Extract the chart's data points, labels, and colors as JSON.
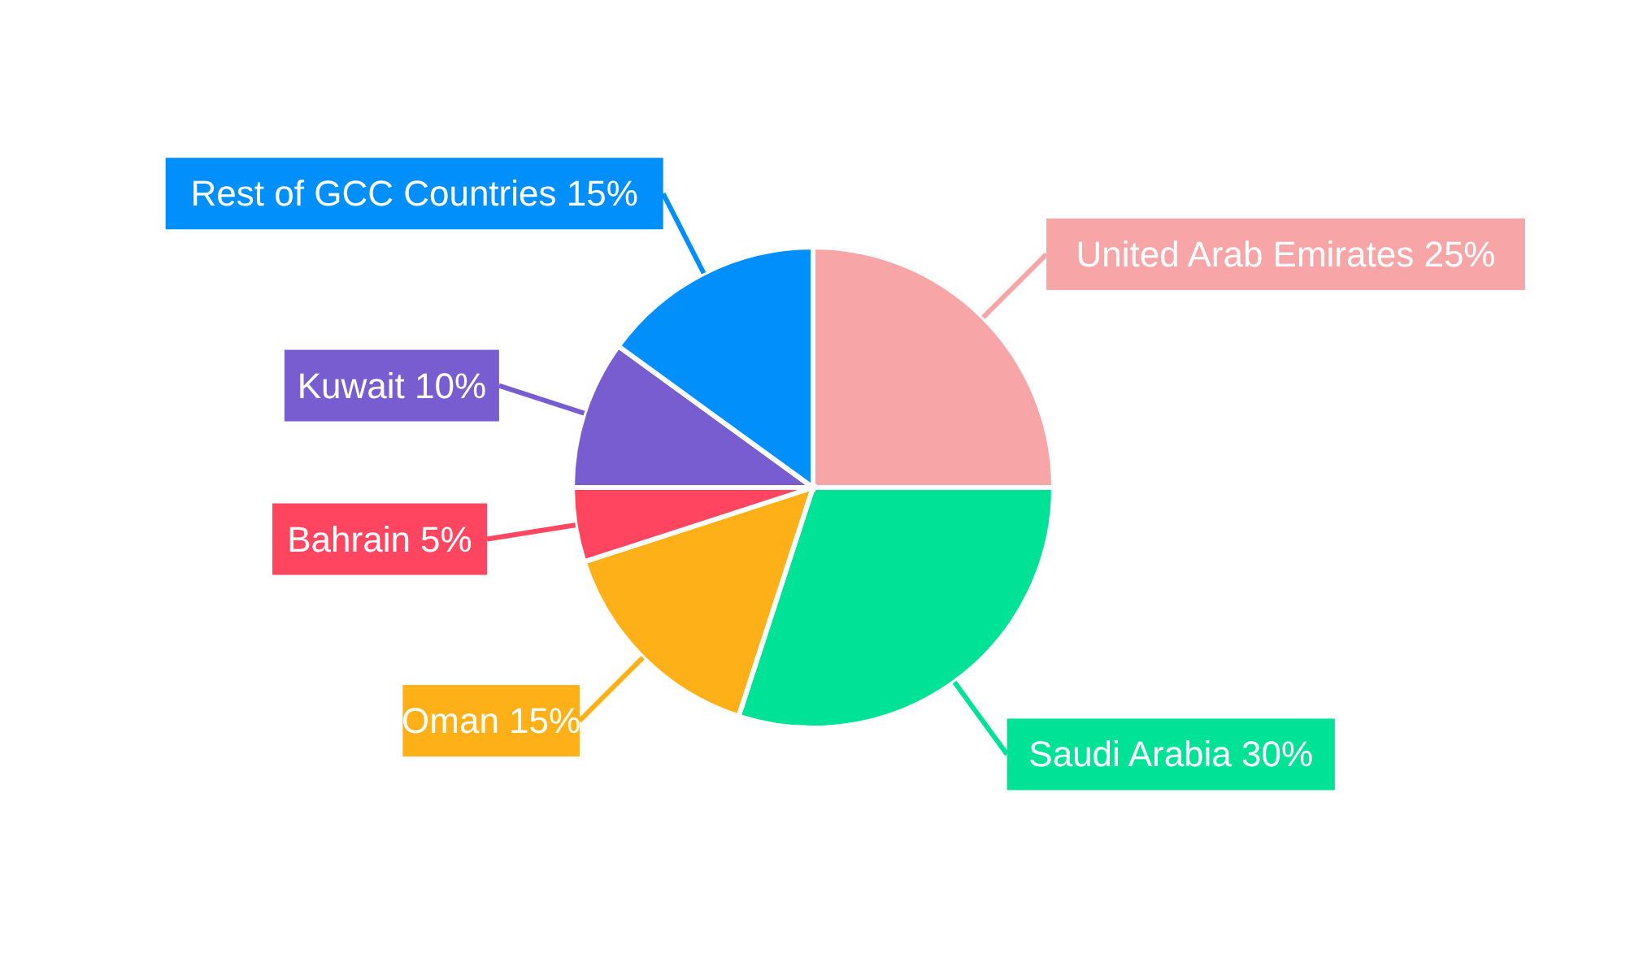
{
  "chart_data": {
    "type": "pie",
    "categories": [
      "United Arab Emirates",
      "Saudi Arabia",
      "Oman",
      "Bahrain",
      "Kuwait",
      "Rest of GCC Countries"
    ],
    "values": [
      25,
      30,
      15,
      5,
      10,
      15
    ],
    "value_labels": [
      "25%",
      "30%",
      "15%",
      "5%",
      "10%",
      "15%"
    ],
    "colors": [
      "#f8a5a8",
      "#00e396",
      "#feb019",
      "#ff4560",
      "#775dd0",
      "#008ffb"
    ]
  }
}
